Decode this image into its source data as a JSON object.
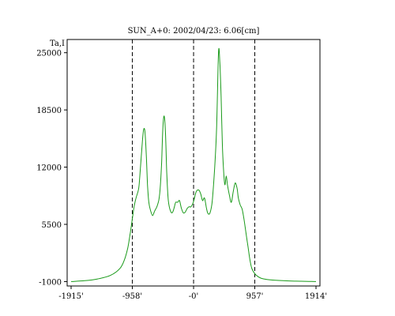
{
  "chart_data": {
    "type": "line",
    "title": "SUN_A+0: 2002/04/23: 6.06[cm]",
    "ylabel": "Ta,I",
    "xlim": [
      -1915,
      1914
    ],
    "ylim": [
      -1500,
      26500
    ],
    "x_tick_values": [
      -1915,
      -958,
      0,
      957,
      1914
    ],
    "x_tick_labels": [
      "-1915'",
      "-958'",
      "-0'",
      "957'",
      "1914'"
    ],
    "y_tick_values": [
      -1000,
      5500,
      12000,
      18500,
      25000
    ],
    "y_tick_labels": [
      "-1000",
      "5500",
      "12000",
      "18500",
      "25000"
    ],
    "vlines": [
      -958,
      0,
      957
    ],
    "grid": false,
    "line_color": "#1a9a1a",
    "series": [
      {
        "x": [
          -1915,
          -1700,
          -1500,
          -1300,
          -1150,
          -1080,
          -1030,
          -990,
          -960,
          -930,
          -900,
          -860,
          -840,
          -800,
          -780,
          -760,
          -740,
          -720,
          -700,
          -670,
          -640,
          -610,
          -580,
          -560,
          -540,
          -520,
          -500,
          -480,
          -460,
          -440,
          -420,
          -400,
          -380,
          -360,
          -340,
          -320,
          -300,
          -280,
          -250,
          -220,
          -190,
          -160,
          -130,
          -100,
          -70,
          -40,
          0,
          40,
          80,
          110,
          140,
          170,
          200,
          220,
          250,
          280,
          300,
          330,
          360,
          390,
          410,
          430,
          450,
          470,
          490,
          510,
          530,
          560,
          590,
          620,
          650,
          680,
          700,
          730,
          760,
          790,
          820,
          850,
          880,
          910,
          957,
          1000,
          1050,
          1100,
          1200,
          1400,
          1600,
          1800,
          1914
        ],
        "y": [
          -1000,
          -900,
          -700,
          -300,
          500,
          1500,
          2800,
          4500,
          6000,
          7500,
          8500,
          9500,
          11000,
          15000,
          16300,
          16000,
          13500,
          10000,
          8000,
          7000,
          6500,
          7000,
          7400,
          7800,
          8400,
          9800,
          12500,
          16500,
          17800,
          16000,
          11500,
          8600,
          7500,
          7000,
          6800,
          7000,
          7500,
          8000,
          8000,
          8200,
          7300,
          6800,
          6900,
          7300,
          7500,
          7500,
          8100,
          9200,
          9400,
          9000,
          8200,
          8500,
          7400,
          6800,
          6700,
          7500,
          8800,
          12000,
          16500,
          25000,
          24000,
          20000,
          14500,
          11500,
          10000,
          11000,
          10000,
          8800,
          8000,
          9200,
          10200,
          9600,
          8500,
          7700,
          7200,
          6000,
          4500,
          3000,
          1500,
          500,
          -100,
          -400,
          -600,
          -700,
          -800,
          -900,
          -950,
          -980,
          -1000
        ]
      }
    ]
  }
}
